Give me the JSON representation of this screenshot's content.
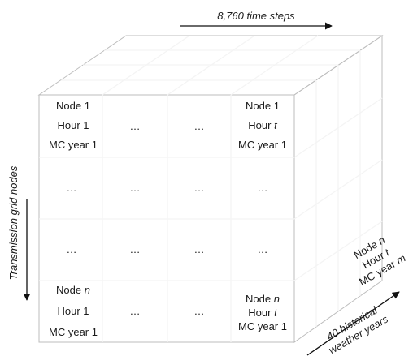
{
  "axes": {
    "top": {
      "text": "8,760 time steps"
    },
    "left": {
      "text": "Transmission grid nodes"
    },
    "depth": {
      "line1": "40 historical",
      "line2": "weather years"
    }
  },
  "ellipsis": "…",
  "cells": {
    "r0c0": [
      "Node 1",
      "Hour 1",
      "MC year 1"
    ],
    "r0c3": [
      "Node 1",
      "Hour ",
      "MC year 1"
    ],
    "r0c3_var": "t",
    "r3c0_line1": "Node ",
    "r3c0_var": "n",
    "r3c0_line2": "Hour 1",
    "r3c0_line3": "MC year 1",
    "r3c3_line1": "Node ",
    "r3c3_var1": "n",
    "r3c3_line2": "Hour ",
    "r3c3_var2": "t",
    "r3c3_line3": "MC year 1"
  },
  "side_label": {
    "line1": "Node ",
    "var1": "n",
    "line2": "Hour ",
    "var2": "t",
    "line3": "MC year ",
    "var3": "m"
  },
  "colors": {
    "front": "#d4d4d4",
    "top": "#e6e6e6",
    "side": "#c4c4c4",
    "grid": "#f4f4f4"
  }
}
